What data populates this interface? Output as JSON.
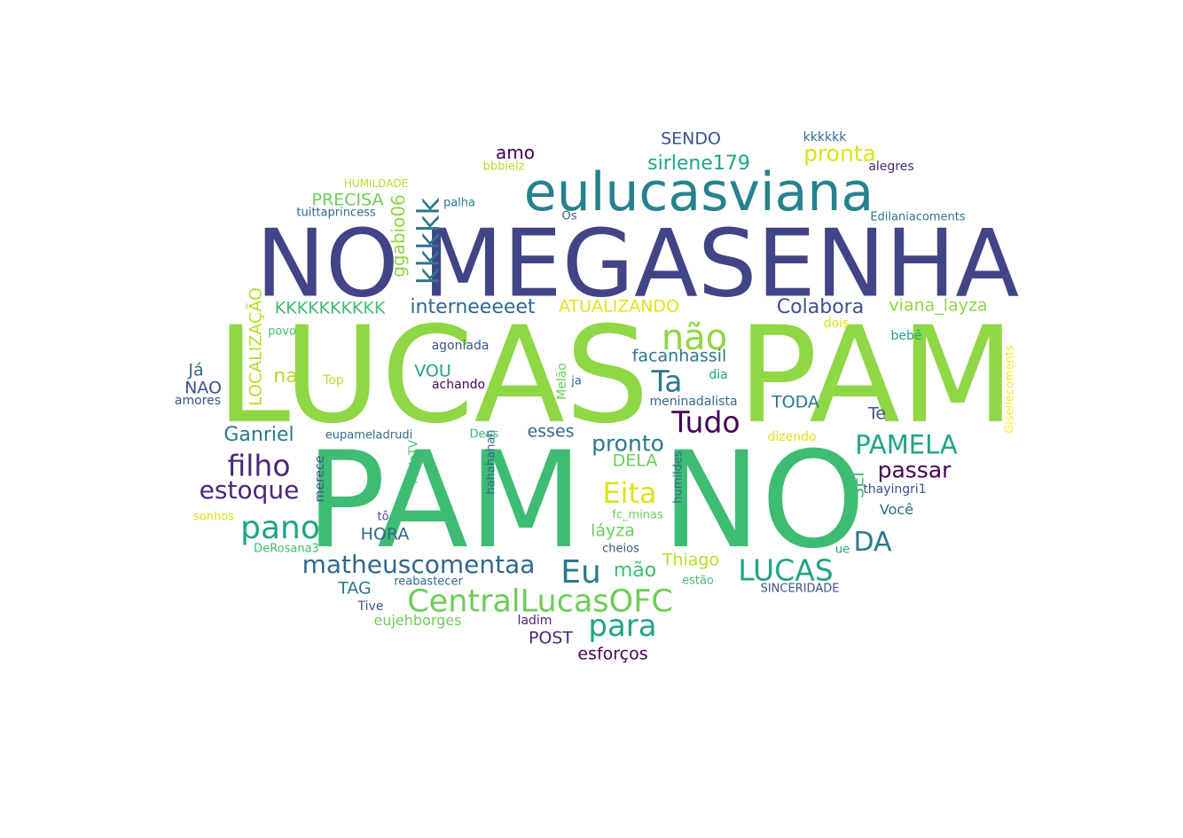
{
  "words": [
    {
      "text": "LUCAS",
      "color": "#8fd744"
    },
    {
      "text": "PAM",
      "color": "#8fd744"
    },
    {
      "text": "PAM",
      "color": "#3fbc73"
    },
    {
      "text": "NO",
      "color": "#3fbc73"
    },
    {
      "text": "NO",
      "color": "#414487"
    },
    {
      "text": "MEGASENHA",
      "color": "#414487"
    },
    {
      "text": "eulucasviana",
      "color": "#26828e"
    },
    {
      "text": "kkkkk",
      "color": "#2a788e"
    },
    {
      "text": "ggabio06",
      "color": "#8fd744"
    },
    {
      "text": "PRECISA",
      "color": "#6ccd5a"
    },
    {
      "text": "amo",
      "color": "#440154"
    },
    {
      "text": "bbbielz",
      "color": "#b5de2b"
    },
    {
      "text": "SENDO",
      "color": "#3b528b"
    },
    {
      "text": "sirlene179",
      "color": "#20a486"
    },
    {
      "text": "pronta",
      "color": "#dde318"
    },
    {
      "text": "kkkkkk",
      "color": "#31688e"
    },
    {
      "text": "alegres",
      "color": "#482878"
    },
    {
      "text": "Edilaniacoments",
      "color": "#2a788e"
    },
    {
      "text": "HUMILDADE",
      "color": "#b5de2b"
    },
    {
      "text": "tuittaprincess",
      "color": "#31688e"
    },
    {
      "text": "palha",
      "color": "#2a788e"
    },
    {
      "text": "Os",
      "color": "#3b528b"
    },
    {
      "text": "KKKKKKKKKK",
      "color": "#3fbc73"
    },
    {
      "text": "interneeeeet",
      "color": "#31688e"
    },
    {
      "text": "ATUALIZANDO",
      "color": "#dde318"
    },
    {
      "text": "Colabora",
      "color": "#3b528b"
    },
    {
      "text": "viana_layza",
      "color": "#8fd744"
    },
    {
      "text": "LOCALIZAÇÃO",
      "color": "#b5de2b"
    },
    {
      "text": "não",
      "color": "#8fd744"
    },
    {
      "text": "dois",
      "color": "#dde318"
    },
    {
      "text": "bebê",
      "color": "#20a486"
    },
    {
      "text": "Gisellecoments",
      "color": "#fde725"
    },
    {
      "text": "povo",
      "color": "#3fbc73"
    },
    {
      "text": "agoniada",
      "color": "#3b528b"
    },
    {
      "text": "facanhassil",
      "color": "#2a788e"
    },
    {
      "text": "Ta",
      "color": "#2a788e"
    },
    {
      "text": "Já",
      "color": "#31688e"
    },
    {
      "text": "NAO",
      "color": "#3b528b"
    },
    {
      "text": "amores",
      "color": "#3b528b"
    },
    {
      "text": "na",
      "color": "#b5de2b"
    },
    {
      "text": "Top",
      "color": "#b5de2b"
    },
    {
      "text": "VOU",
      "color": "#20a486"
    },
    {
      "text": "achando",
      "color": "#440154"
    },
    {
      "text": "Melão",
      "color": "#6ccd5a"
    },
    {
      "text": "ja",
      "color": "#31688e"
    },
    {
      "text": "dia",
      "color": "#20a486"
    },
    {
      "text": "meninadalista",
      "color": "#31688e"
    },
    {
      "text": "TODA",
      "color": "#2a788e"
    },
    {
      "text": "Tudo",
      "color": "#440154"
    },
    {
      "text": "Te",
      "color": "#3b528b"
    },
    {
      "text": "Ganriel",
      "color": "#2a788e"
    },
    {
      "text": "eupameladrudi",
      "color": "#31688e"
    },
    {
      "text": "Deus",
      "color": "#3fbc73"
    },
    {
      "text": "esses",
      "color": "#31688e"
    },
    {
      "text": "pronto",
      "color": "#2a788e"
    },
    {
      "text": "dizendo",
      "color": "#dde318"
    },
    {
      "text": "PAMELA",
      "color": "#20a486"
    },
    {
      "text": "filho",
      "color": "#482878"
    },
    {
      "text": "estoque",
      "color": "#482878"
    },
    {
      "text": "merece",
      "color": "#3b528b"
    },
    {
      "text": "RedeTV",
      "color": "#3fbc73"
    },
    {
      "text": "hahahahah",
      "color": "#31688e"
    },
    {
      "text": "DELA",
      "color": "#6ccd5a"
    },
    {
      "text": "humildes",
      "color": "#31688e"
    },
    {
      "text": "passar",
      "color": "#440154"
    },
    {
      "text": "SEI",
      "color": "#3fbc73"
    },
    {
      "text": "thayingri1",
      "color": "#3b528b"
    },
    {
      "text": "Eita",
      "color": "#dde318"
    },
    {
      "text": "pano",
      "color": "#20a486"
    },
    {
      "text": "sonhos",
      "color": "#dde318"
    },
    {
      "text": "tô",
      "color": "#3b528b"
    },
    {
      "text": "fc_minas",
      "color": "#6ccd5a"
    },
    {
      "text": "Você",
      "color": "#31688e"
    },
    {
      "text": "HORA",
      "color": "#31688e"
    },
    {
      "text": "láyza",
      "color": "#6ccd5a"
    },
    {
      "text": "DA",
      "color": "#2a788e"
    },
    {
      "text": "matheuscomentaa",
      "color": "#31688e"
    },
    {
      "text": "Eu",
      "color": "#2a788e"
    },
    {
      "text": "cheios",
      "color": "#3b528b"
    },
    {
      "text": "mão",
      "color": "#3fbc73"
    },
    {
      "text": "Thiago",
      "color": "#b5de2b"
    },
    {
      "text": "LUCAS",
      "color": "#20a486"
    },
    {
      "text": "ue",
      "color": "#20a486"
    },
    {
      "text": "DeRosana3",
      "color": "#3fbc73"
    },
    {
      "text": "TAG",
      "color": "#2a788e"
    },
    {
      "text": "reabastecer",
      "color": "#31688e"
    },
    {
      "text": "estão",
      "color": "#3fbc73"
    },
    {
      "text": "SINCERIDADE",
      "color": "#3b528b"
    },
    {
      "text": "CentralLucasOFC",
      "color": "#6ccd5a"
    },
    {
      "text": "Tive",
      "color": "#3b528b"
    },
    {
      "text": "para",
      "color": "#20a486"
    },
    {
      "text": "eujehborges",
      "color": "#6ccd5a"
    },
    {
      "text": "ladim",
      "color": "#482878"
    },
    {
      "text": "POST",
      "color": "#482878"
    },
    {
      "text": "esforços",
      "color": "#440154"
    }
  ]
}
